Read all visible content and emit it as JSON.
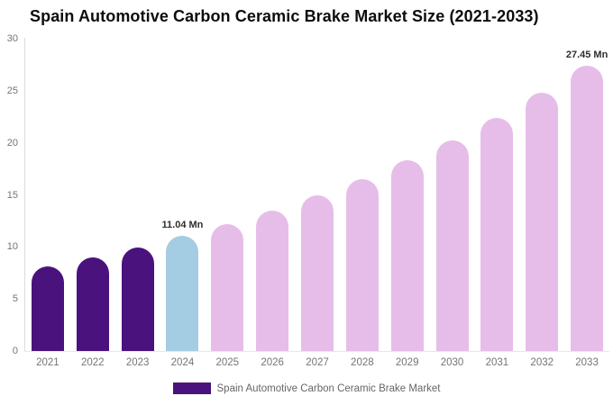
{
  "chart_data": {
    "type": "bar",
    "title": "Spain Automotive Carbon Ceramic Brake Market Size (2021-2033)",
    "categories": [
      "2021",
      "2022",
      "2023",
      "2024",
      "2025",
      "2026",
      "2027",
      "2028",
      "2029",
      "2030",
      "2031",
      "2032",
      "2033"
    ],
    "values": [
      8.15,
      9.02,
      9.98,
      11.04,
      12.22,
      13.52,
      14.96,
      16.55,
      18.32,
      20.27,
      22.43,
      24.81,
      27.45
    ],
    "unit": "Mn",
    "data_labels": [
      null,
      null,
      null,
      "11.04 Mn",
      null,
      null,
      null,
      null,
      null,
      null,
      null,
      null,
      "27.45 Mn"
    ],
    "series_colors": [
      "#4A127D",
      "#4A127D",
      "#4A127D",
      "#A4CCE3",
      "#E6BDE9",
      "#E6BDE9",
      "#E6BDE9",
      "#E6BDE9",
      "#E6BDE9",
      "#E6BDE9",
      "#E6BDE9",
      "#E6BDE9",
      "#E6BDE9"
    ],
    "xlabel": "",
    "ylabel": "",
    "ylim": [
      0,
      30
    ],
    "yticks": [
      0,
      5,
      10,
      15,
      20,
      25,
      30
    ],
    "grid": false,
    "legend_position": "bottom"
  },
  "legend": {
    "label": "Spain Automotive Carbon Ceramic Brake Market",
    "swatch_color": "#4A127D"
  },
  "colors": {
    "historical_bar": "#4A127D",
    "current_year_bar": "#A4CCE3",
    "forecast_bar": "#E6BDE9",
    "axis_line": "#DCDCDC",
    "tick_text": "#757575",
    "data_label_text": "#2E2E2E",
    "title_text": "#0D0D0D",
    "background": "#FFFFFF"
  }
}
